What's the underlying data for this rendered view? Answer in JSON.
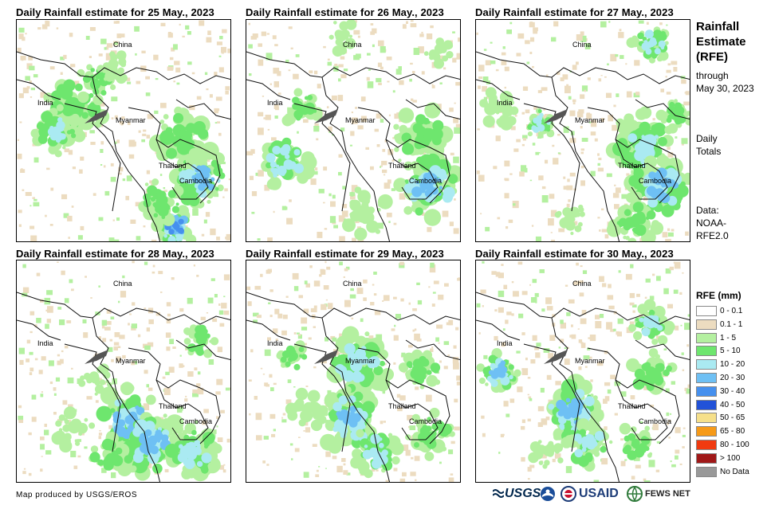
{
  "panels": [
    {
      "title": "Daily Rainfall estimate for 25 May., 2023"
    },
    {
      "title": "Daily Rainfall estimate for 26 May., 2023"
    },
    {
      "title": "Daily Rainfall estimate for 27 May., 2023"
    },
    {
      "title": "Daily Rainfall estimate for 28 May., 2023"
    },
    {
      "title": "Daily Rainfall estimate for 29 May., 2023"
    },
    {
      "title": "Daily Rainfall estimate for 30 May., 2023"
    }
  ],
  "map_labels": {
    "china": "China",
    "india": "India",
    "myanmar": "Myanmar",
    "thailand": "Thailand",
    "cambodia": "Cambodia"
  },
  "side": {
    "title_line1": "Rainfall",
    "title_line2": "Estimate",
    "title_line3": "(RFE)",
    "through_line1": "through",
    "through_line2": "May 30, 2023",
    "daily_line1": "Daily",
    "daily_line2": "Totals",
    "data_line1": "Data:",
    "data_line2": "NOAA-",
    "data_line3": "RFE2.0"
  },
  "legend": {
    "title": "RFE (mm)",
    "items": [
      {
        "label": "0 - 0.1",
        "color": "#ffffff"
      },
      {
        "label": "0.1 - 1",
        "color": "#ecdcc0"
      },
      {
        "label": "1 - 5",
        "color": "#b4f0a0"
      },
      {
        "label": "5 - 10",
        "color": "#6ee66e"
      },
      {
        "label": "10 - 20",
        "color": "#aaeaf2"
      },
      {
        "label": "20 - 30",
        "color": "#6ec0f4"
      },
      {
        "label": "30 - 40",
        "color": "#4690ee"
      },
      {
        "label": "40 - 50",
        "color": "#2252d8"
      },
      {
        "label": "50 - 65",
        "color": "#f6e08a"
      },
      {
        "label": "65 - 80",
        "color": "#f69a18"
      },
      {
        "label": "80 - 100",
        "color": "#f03a10"
      },
      {
        "label": "> 100",
        "color": "#a01818"
      },
      {
        "label": "No Data",
        "color": "#999999"
      }
    ]
  },
  "footer": {
    "credit": "Map produced by USGS/EROS"
  },
  "logos": {
    "usgs": "USGS",
    "usaid": "USAID",
    "fewsnet": "FEWS NET"
  }
}
